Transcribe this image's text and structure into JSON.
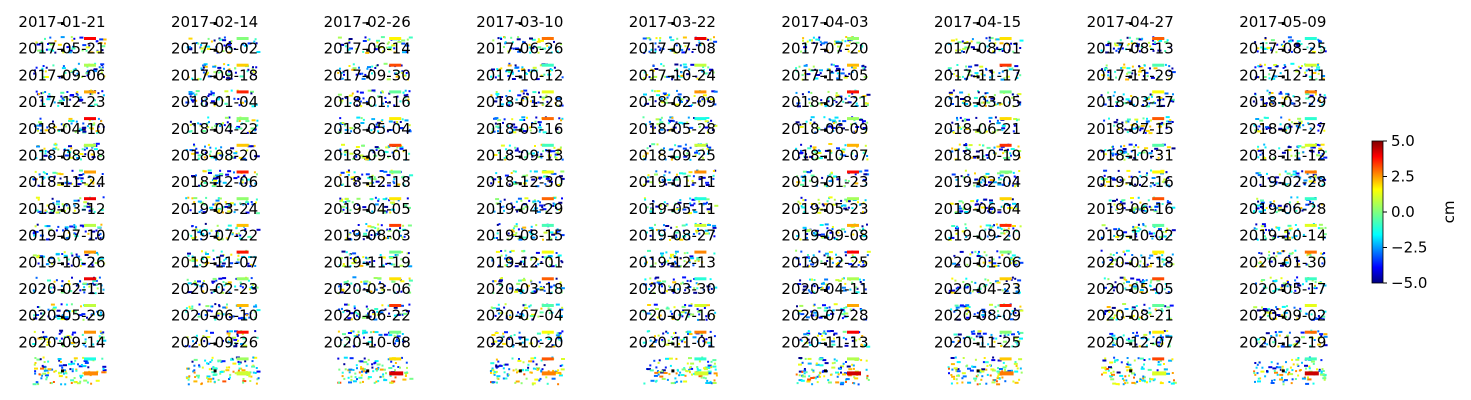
{
  "chart_data": {
    "type": "heatmap",
    "title": "",
    "grid_rows": 13,
    "grid_cols": 9,
    "dates": [
      "2017-01-21",
      "2017-02-14",
      "2017-02-26",
      "2017-03-10",
      "2017-03-22",
      "2017-04-03",
      "2017-04-15",
      "2017-04-27",
      "2017-05-09",
      "2017-05-21",
      "2017-06-02",
      "2017-06-14",
      "2017-06-26",
      "2017-07-08",
      "2017-07-20",
      "2017-08-01",
      "2017-08-13",
      "2017-08-25",
      "2017-09-06",
      "2017-09-18",
      "2017-09-30",
      "2017-10-12",
      "2017-10-24",
      "2017-11-05",
      "2017-11-17",
      "2017-11-29",
      "2017-12-11",
      "2017-12-23",
      "2018-01-04",
      "2018-01-16",
      "2018-01-28",
      "2018-02-09",
      "2018-02-21",
      "2018-03-05",
      "2018-03-17",
      "2018-03-29",
      "2018-04-10",
      "2018-04-22",
      "2018-05-04",
      "2018-05-16",
      "2018-05-28",
      "2018-06-09",
      "2018-06-21",
      "2018-07-15",
      "2018-07-27",
      "2018-08-08",
      "2018-08-20",
      "2018-09-01",
      "2018-09-13",
      "2018-09-25",
      "2018-10-07",
      "2018-10-19",
      "2018-10-31",
      "2018-11-12",
      "2018-11-24",
      "2018-12-06",
      "2018-12-18",
      "2018-12-30",
      "2019-01-11",
      "2019-01-23",
      "2019-02-04",
      "2019-02-16",
      "2019-02-28",
      "2019-03-12",
      "2019-03-24",
      "2019-04-05",
      "2019-04-29",
      "2019-05-11",
      "2019-05-23",
      "2019-06-04",
      "2019-06-16",
      "2019-06-28",
      "2019-07-10",
      "2019-07-22",
      "2019-08-03",
      "2019-08-15",
      "2019-08-27",
      "2019-09-08",
      "2019-09-20",
      "2019-10-02",
      "2019-10-14",
      "2019-10-26",
      "2019-11-07",
      "2019-11-19",
      "2019-12-01",
      "2019-12-13",
      "2019-12-25",
      "2020-01-06",
      "2020-01-18",
      "2020-01-30",
      "2020-02-11",
      "2020-02-23",
      "2020-03-06",
      "2020-03-18",
      "2020-03-30",
      "2020-04-11",
      "2020-04-23",
      "2020-05-05",
      "2020-05-17",
      "2020-05-29",
      "2020-06-10",
      "2020-06-22",
      "2020-07-04",
      "2020-07-16",
      "2020-07-28",
      "2020-08-09",
      "2020-08-21",
      "2020-09-02",
      "2020-09-14",
      "2020-09-26",
      "2020-10-08",
      "2020-10-20",
      "2020-11-01",
      "2020-11-13",
      "2020-11-25",
      "2020-12-07",
      "2020-12-19"
    ],
    "colorbar": {
      "label": "cm",
      "vmin": -5.0,
      "vmax": 5.0,
      "ticks": [
        5.0,
        2.5,
        0.0,
        -2.5,
        -5.0
      ],
      "tick_labels": [
        "5.0",
        "2.5",
        "0.0",
        "−2.5",
        "−5.0"
      ],
      "colormap": "jet"
    }
  }
}
